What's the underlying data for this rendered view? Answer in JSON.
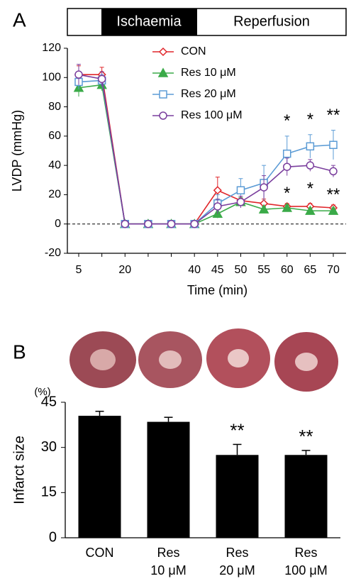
{
  "panel_labels": [
    "A",
    "B"
  ],
  "timeline": {
    "ischaemia": "Ischaemia",
    "reperfusion": "Reperfusion"
  },
  "chart_data": [
    {
      "type": "line",
      "x_label": "Time (min)",
      "y_label": "LVDP (mmHg)",
      "categories": [
        "5",
        null,
        "20",
        null,
        null,
        "40",
        "45",
        "50",
        "55",
        "60",
        "65",
        "70"
      ],
      "ylim": [
        -20,
        120
      ],
      "yticks": [
        -20,
        0,
        20,
        40,
        60,
        80,
        100,
        120
      ],
      "series": [
        {
          "name": "CON",
          "color": "#e0262b",
          "marker": "diamond",
          "values": [
            102,
            102,
            0,
            0,
            0,
            0,
            23,
            16,
            14,
            12,
            12,
            11
          ],
          "errors": [
            6,
            5,
            0,
            0,
            0,
            0,
            9,
            3,
            3,
            2,
            2,
            2
          ],
          "significance": [
            null,
            null,
            null,
            null,
            null,
            null,
            null,
            null,
            null,
            null,
            null,
            null
          ]
        },
        {
          "name": "Res 10 μM",
          "color": "#3aaa48",
          "marker": "triangle",
          "values": [
            93,
            95,
            0,
            0,
            0,
            0,
            7,
            15,
            10,
            11,
            9,
            9
          ],
          "errors": [
            6,
            4,
            0,
            0,
            0,
            0,
            3,
            3,
            2,
            2,
            2,
            2
          ],
          "significance": [
            null,
            null,
            null,
            null,
            null,
            null,
            null,
            null,
            null,
            null,
            null,
            null
          ]
        },
        {
          "name": "Res 20 μM",
          "color": "#5b9bd5",
          "marker": "square",
          "values": [
            97,
            98,
            0,
            0,
            0,
            0,
            14,
            23,
            28,
            48,
            53,
            54
          ],
          "errors": [
            5,
            4,
            0,
            0,
            0,
            0,
            6,
            8,
            12,
            12,
            8,
            10
          ],
          "significance": [
            null,
            null,
            null,
            null,
            null,
            null,
            null,
            null,
            null,
            "*",
            "*",
            "**"
          ]
        },
        {
          "name": "Res 100 μM",
          "color": "#7a3e9d",
          "marker": "circle",
          "values": [
            102,
            99,
            0,
            0,
            0,
            0,
            12,
            15,
            25,
            39,
            40,
            36
          ],
          "errors": [
            7,
            5,
            0,
            0,
            0,
            0,
            5,
            4,
            8,
            6,
            4,
            4
          ],
          "significance": [
            null,
            null,
            null,
            null,
            null,
            null,
            null,
            null,
            null,
            "*",
            "*",
            "**"
          ]
        }
      ]
    },
    {
      "type": "bar",
      "y_label": "Infarct size",
      "y_unit": "(%)",
      "categories": [
        [
          "CON"
        ],
        [
          "Res",
          "10 μM"
        ],
        [
          "Res",
          "20 μM"
        ],
        [
          "Res",
          "100 μM"
        ]
      ],
      "values": [
        40.5,
        38.5,
        27.5,
        27.5
      ],
      "errors": [
        1.5,
        1.5,
        3.5,
        1.5
      ],
      "significance": [
        null,
        null,
        "**",
        "**"
      ],
      "color": "#000000",
      "ylim": [
        0,
        45
      ],
      "yticks": [
        0,
        15,
        30,
        45
      ]
    }
  ]
}
